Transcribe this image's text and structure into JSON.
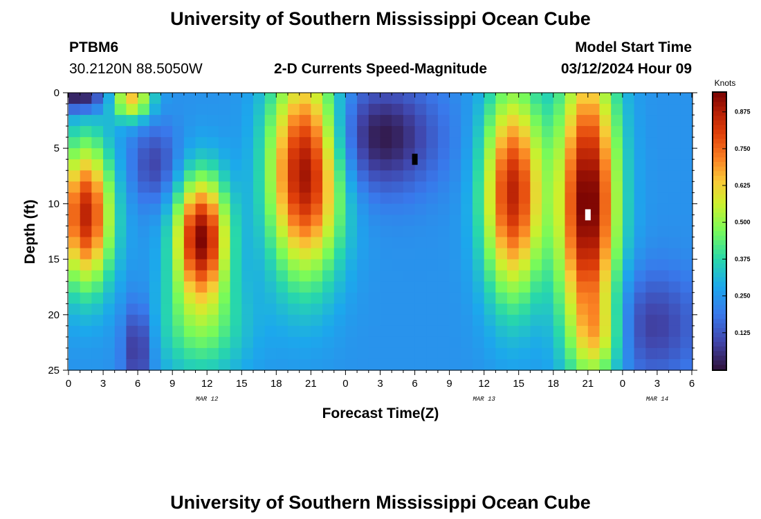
{
  "page": {
    "title": "University of Southern Mississippi Ocean Cube",
    "station": "PTBM6",
    "coordinates": "30.2120N  88.5050W",
    "product": "2-D Currents Speed-Magnitude",
    "model_label": "Model Start Time",
    "model_time": "03/12/2024 Hour 09",
    "footer_title": "University of Southern Mississippi Ocean Cube"
  },
  "chart_data": {
    "type": "heatmap",
    "title": "2-D Currents Speed-Magnitude",
    "xlabel": "Forecast Time(Z)",
    "ylabel": "Depth (ft)",
    "x_range_hours": [
      0,
      54
    ],
    "y_range_ft": [
      0,
      25
    ],
    "x_ticks": [
      "0",
      "3",
      "6",
      "9",
      "12",
      "15",
      "18",
      "21",
      "0",
      "3",
      "6",
      "9",
      "12",
      "15",
      "18",
      "21",
      "0",
      "3",
      "6"
    ],
    "y_ticks": [
      "0",
      "5",
      "10",
      "15",
      "20",
      "25"
    ],
    "date_labels": [
      {
        "text": "MAR 12",
        "hour": 12
      },
      {
        "text": "MAR 13",
        "hour": 36
      },
      {
        "text": "MAR 14",
        "hour": 51
      }
    ],
    "colorbar": {
      "unit": "Knots",
      "range": [
        0.0,
        0.94
      ],
      "ticks": [
        "0.875",
        "0.750",
        "0.625",
        "0.500",
        "0.375",
        "0.250",
        "0.125"
      ],
      "tick_values": [
        0.875,
        0.75,
        0.625,
        0.5,
        0.375,
        0.25,
        0.125
      ]
    },
    "field": {
      "background_knots": 0.24,
      "components": [
        {
          "hour": 1.5,
          "depth": 11,
          "sigma_hours": 1.6,
          "sigma_depth": 4.5,
          "knots": 0.62
        },
        {
          "hour": 1.0,
          "depth": 0.5,
          "sigma_hours": 1.5,
          "sigma_depth": 0.9,
          "knots": -0.25
        },
        {
          "hour": 5.5,
          "depth": 0.6,
          "sigma_hours": 1.2,
          "sigma_depth": 1.3,
          "knots": 0.4
        },
        {
          "hour": 7.5,
          "depth": 6.5,
          "sigma_hours": 1.5,
          "sigma_depth": 2.5,
          "knots": -0.15
        },
        {
          "hour": 6.0,
          "depth": 23,
          "sigma_hours": 0.9,
          "sigma_depth": 3.0,
          "knots": -0.2
        },
        {
          "hour": 11.5,
          "depth": 13,
          "sigma_hours": 1.6,
          "sigma_depth": 3.8,
          "knots": 0.68
        },
        {
          "hour": 11.5,
          "depth": 21,
          "sigma_hours": 2.8,
          "sigma_depth": 3.5,
          "knots": 0.2
        },
        {
          "hour": 20.5,
          "depth": 7,
          "sigma_hours": 2.2,
          "sigma_depth": 6.5,
          "knots": 0.68
        },
        {
          "hour": 27.0,
          "depth": 4,
          "sigma_hours": 3.5,
          "sigma_depth": 3.5,
          "knots": -0.23
        },
        {
          "hour": 38.5,
          "depth": 9,
          "sigma_hours": 1.8,
          "sigma_depth": 6.5,
          "knots": 0.62
        },
        {
          "hour": 45.0,
          "depth": 10,
          "sigma_hours": 1.8,
          "sigma_depth": 9.0,
          "knots": 0.72
        },
        {
          "hour": 50.5,
          "depth": 21,
          "sigma_hours": 3.0,
          "sigma_depth": 3.5,
          "knots": -0.16
        },
        {
          "hour": 46.0,
          "depth": 22,
          "sigma_hours": 1.5,
          "sigma_depth": 2.5,
          "knots": 0.2
        }
      ]
    },
    "markers": [
      {
        "hour": 30,
        "depth": 6,
        "color": "#000000"
      },
      {
        "hour": 45,
        "depth": 11,
        "color": "#ffffff"
      }
    ]
  }
}
